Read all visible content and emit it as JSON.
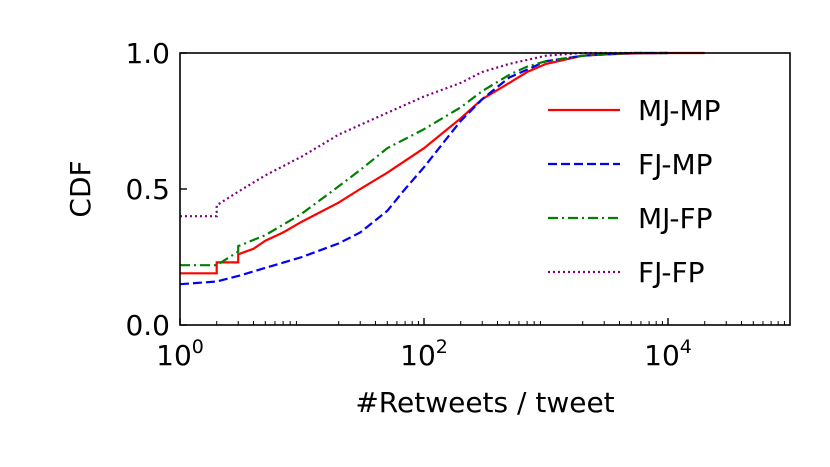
{
  "chart_data": {
    "type": "line",
    "xlabel": "#Retweets / tweet",
    "ylabel": "CDF",
    "xscale": "log",
    "xlim": [
      1,
      100000
    ],
    "ylim": [
      0,
      1
    ],
    "x_ticks": [
      {
        "value": 1,
        "base": "10",
        "exp": "0"
      },
      {
        "value": 100,
        "base": "10",
        "exp": "2"
      },
      {
        "value": 10000,
        "base": "10",
        "exp": "4"
      }
    ],
    "y_ticks": [
      {
        "value": 0,
        "label": "0.0"
      },
      {
        "value": 0.5,
        "label": "0.5"
      },
      {
        "value": 1,
        "label": "1.0"
      }
    ],
    "legend_position": "right",
    "series": [
      {
        "name": "MJ-MP",
        "color": "#ff0000",
        "dash": "solid",
        "x": [
          1,
          2,
          2,
          3,
          3,
          4,
          5,
          7,
          10,
          20,
          30,
          50,
          100,
          200,
          300,
          500,
          700,
          1000,
          2000,
          3000,
          5000,
          10000,
          20000
        ],
        "y": [
          0.19,
          0.19,
          0.23,
          0.23,
          0.26,
          0.28,
          0.31,
          0.34,
          0.38,
          0.45,
          0.5,
          0.56,
          0.65,
          0.76,
          0.83,
          0.89,
          0.93,
          0.96,
          0.99,
          0.995,
          0.998,
          1.0,
          1.0
        ]
      },
      {
        "name": "FJ-MP",
        "color": "#0000ff",
        "dash": "dashed",
        "x": [
          1,
          2,
          3,
          5,
          10,
          20,
          30,
          50,
          70,
          100,
          150,
          200,
          300,
          500,
          1000,
          2000,
          5000,
          10000
        ],
        "y": [
          0.15,
          0.16,
          0.18,
          0.21,
          0.25,
          0.3,
          0.34,
          0.42,
          0.5,
          0.58,
          0.68,
          0.75,
          0.83,
          0.91,
          0.97,
          0.99,
          1.0,
          1.0
        ]
      },
      {
        "name": "MJ-FP",
        "color": "#008000",
        "dash": "dashdot",
        "x": [
          1,
          2,
          3,
          3,
          5,
          10,
          20,
          30,
          50,
          100,
          200,
          300,
          500,
          700,
          1000,
          2000,
          5000,
          10000
        ],
        "y": [
          0.22,
          0.22,
          0.27,
          0.29,
          0.33,
          0.41,
          0.51,
          0.57,
          0.65,
          0.72,
          0.8,
          0.86,
          0.92,
          0.95,
          0.97,
          0.99,
          1.0,
          1.0
        ]
      },
      {
        "name": "FJ-FP",
        "color": "#800080",
        "dash": "dotted",
        "x": [
          1,
          2,
          2,
          3,
          5,
          10,
          20,
          50,
          100,
          200,
          300,
          500,
          1000,
          2000,
          5000,
          10000
        ],
        "y": [
          0.4,
          0.4,
          0.44,
          0.49,
          0.55,
          0.62,
          0.7,
          0.78,
          0.84,
          0.89,
          0.93,
          0.96,
          0.99,
          1.0,
          1.0,
          1.0
        ]
      }
    ]
  }
}
